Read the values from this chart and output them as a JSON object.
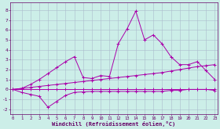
{
  "xlabel": "Windchill (Refroidissement éolien,°C)",
  "bg_color": "#cceee8",
  "grid_color": "#aabbcc",
  "line_color": "#aa00aa",
  "x_ticks": [
    0,
    1,
    2,
    3,
    4,
    5,
    6,
    7,
    8,
    9,
    10,
    11,
    12,
    13,
    14,
    15,
    16,
    17,
    18,
    19,
    20,
    21,
    22,
    23
  ],
  "ylim": [
    -2.5,
    8.8
  ],
  "xlim": [
    -0.3,
    23.3
  ],
  "yticks": [
    -2,
    -1,
    0,
    1,
    2,
    3,
    4,
    5,
    6,
    7,
    8
  ],
  "series": [
    [
      0.0,
      -0.3,
      -0.5,
      -0.7,
      -1.8,
      -1.2,
      -0.6,
      -0.3,
      -0.25,
      -0.2,
      -0.2,
      -0.2,
      -0.2,
      -0.2,
      -0.2,
      -0.2,
      -0.2,
      -0.2,
      -0.1,
      -0.1,
      -0.0,
      0.0,
      0.0,
      -0.1
    ],
    [
      0.0,
      0.0,
      0.0,
      0.0,
      0.0,
      0.0,
      0.0,
      0.0,
      0.0,
      0.0,
      0.0,
      0.0,
      0.0,
      0.0,
      0.0,
      0.0,
      0.0,
      0.0,
      0.0,
      0.0,
      0.0,
      0.0,
      0.0,
      0.0
    ],
    [
      0.0,
      0.1,
      0.2,
      0.3,
      0.4,
      0.5,
      0.6,
      0.7,
      0.8,
      0.9,
      1.0,
      1.1,
      1.2,
      1.3,
      1.4,
      1.5,
      1.6,
      1.7,
      1.85,
      2.0,
      2.15,
      2.3,
      2.4,
      2.5
    ],
    [
      0.0,
      0.1,
      0.5,
      1.0,
      1.6,
      2.2,
      2.8,
      3.3,
      1.2,
      1.1,
      1.4,
      1.3,
      4.6,
      6.1,
      7.9,
      5.0,
      5.5,
      4.6,
      3.3,
      2.5,
      2.5,
      2.8,
      1.9,
      1.0
    ]
  ]
}
